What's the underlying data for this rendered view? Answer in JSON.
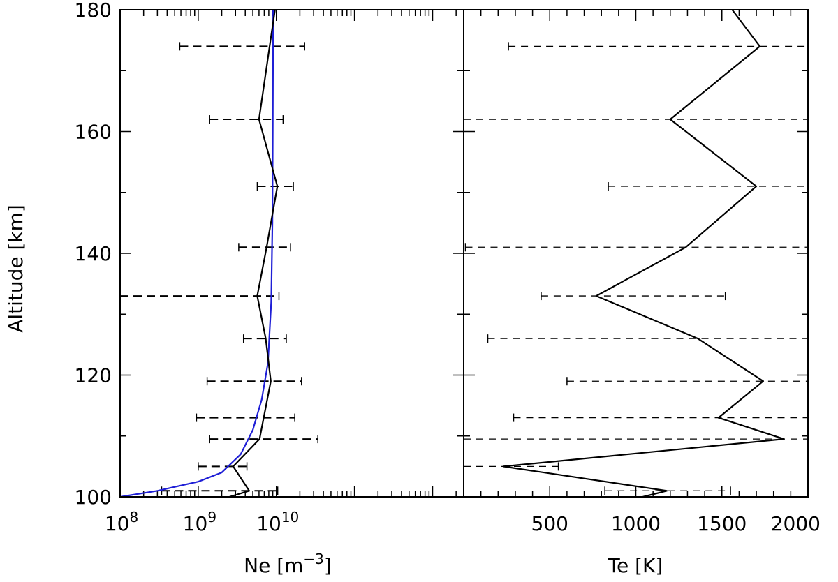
{
  "chart_data": [
    {
      "type": "line",
      "panel": "left",
      "xlabel": "Ne [m⁻³]",
      "xlabel_parts": {
        "main": "Ne [m",
        "sup": "−3",
        "end": "]"
      },
      "ylabel": "Altitude [km]",
      "xscale": "log",
      "xlim": [
        100000000,
        2500000000000
      ],
      "ylim": [
        100,
        180
      ],
      "x_tick_labels": [
        {
          "value": 100000000,
          "base": "10",
          "exp": "8"
        },
        {
          "value": 1000000000,
          "base": "10",
          "exp": "9"
        },
        {
          "value": 10000000000,
          "base": "10",
          "exp": "10"
        }
      ],
      "y_ticks": [
        100,
        120,
        140,
        160,
        180
      ],
      "y_tick_labels": [
        "100",
        "120",
        "140",
        "160",
        "180"
      ],
      "series": [
        {
          "style": "measured",
          "color": "#000000",
          "points": [
            [
              9600000000,
              180
            ],
            [
              8200000000,
              174
            ],
            [
              6000000000,
              162
            ],
            [
              10300000000,
              151
            ],
            [
              7500000000,
              141
            ],
            [
              5700000000,
              133
            ],
            [
              7300000000,
              126
            ],
            [
              8500000000,
              119
            ],
            [
              6100000000,
              109.5
            ],
            [
              2800000000,
              105
            ],
            [
              4500000000,
              101
            ],
            [
              2500000000,
              100
            ]
          ]
        },
        {
          "style": "model",
          "color": "#1f1fd6",
          "points": [
            [
              100000000,
              100
            ],
            [
              300000000,
              101
            ],
            [
              1000000000,
              102.5
            ],
            [
              2000000000,
              104
            ],
            [
              3500000000,
              107
            ],
            [
              5000000000,
              111
            ],
            [
              6500000000,
              116
            ],
            [
              7800000000,
              122
            ],
            [
              8600000000,
              132
            ],
            [
              8900000000,
              145
            ],
            [
              9000000000,
              160
            ],
            [
              9100000000,
              180
            ]
          ]
        }
      ],
      "error_bars": [
        {
          "y": 174,
          "low": 580000000,
          "high": 23000000000
        },
        {
          "y": 162,
          "low": 1400000000,
          "high": 12200000000
        },
        {
          "y": 151,
          "low": 5700000000,
          "high": 16500000000
        },
        {
          "y": 141,
          "low": 3300000000,
          "high": 15200000000
        },
        {
          "y": 133,
          "low": 100000000,
          "high": 10800000000
        },
        {
          "y": 126,
          "low": 3800000000,
          "high": 13400000000
        },
        {
          "y": 119,
          "low": 1300000000,
          "high": 21000000000
        },
        {
          "y": 113,
          "low": 950000000,
          "high": 17200000000
        },
        {
          "y": 109.5,
          "low": 1400000000,
          "high": 34000000000
        },
        {
          "y": 105,
          "low": 1000000000,
          "high": 4200000000
        },
        {
          "y": 101,
          "low": 340000000,
          "high": 10400000000
        }
      ]
    },
    {
      "type": "line",
      "panel": "right",
      "xlabel": "Te [K]",
      "xlim": [
        0,
        2000
      ],
      "ylim": [
        100,
        180
      ],
      "x_ticks": [
        500,
        1000,
        1500,
        2000
      ],
      "x_tick_labels": [
        "500",
        "1000",
        "1500",
        "2000"
      ],
      "series": [
        {
          "style": "measured",
          "color": "#000000",
          "points": [
            [
              1560,
              180
            ],
            [
              1720,
              174
            ],
            [
              1200,
              162
            ],
            [
              1700,
              151
            ],
            [
              1290,
              141
            ],
            [
              770,
              133
            ],
            [
              1360,
              126
            ],
            [
              1740,
              119
            ],
            [
              1480,
              113
            ],
            [
              1860,
              109.5
            ],
            [
              230,
              105
            ],
            [
              1180,
              101
            ],
            [
              1040,
              100
            ]
          ]
        }
      ],
      "error_bars": [
        {
          "y": 174,
          "low": 260,
          "high": 2000
        },
        {
          "y": 162,
          "low": 0,
          "high": 2000
        },
        {
          "y": 151,
          "low": 840,
          "high": 2000
        },
        {
          "y": 141,
          "low": 10,
          "high": 2000
        },
        {
          "y": 133,
          "low": 450,
          "high": 1520
        },
        {
          "y": 126,
          "low": 140,
          "high": 2000
        },
        {
          "y": 119,
          "low": 600,
          "high": 2000
        },
        {
          "y": 113,
          "low": 290,
          "high": 2000
        },
        {
          "y": 109.5,
          "low": 0,
          "high": 2000
        },
        {
          "y": 105,
          "low": 0,
          "high": 550
        },
        {
          "y": 101,
          "low": 820,
          "high": 1550
        }
      ]
    }
  ]
}
